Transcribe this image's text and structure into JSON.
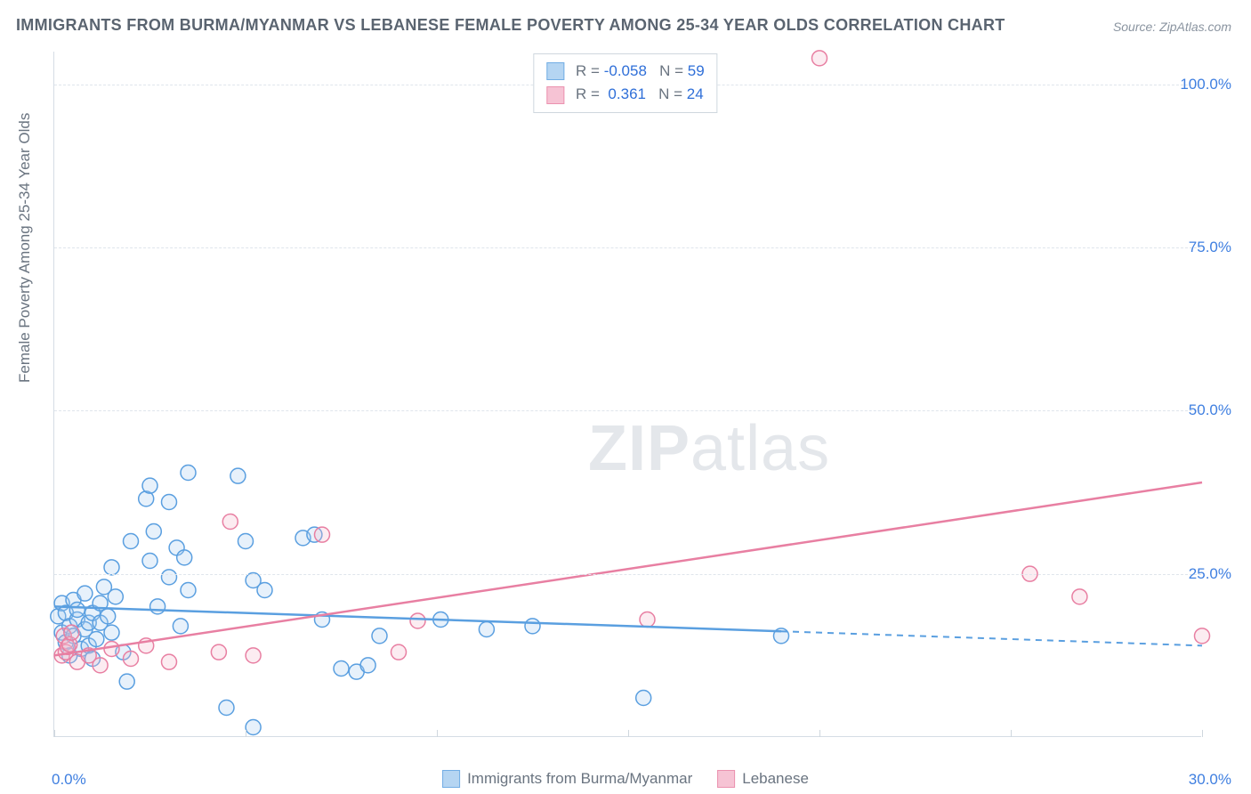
{
  "title": "IMMIGRANTS FROM BURMA/MYANMAR VS LEBANESE FEMALE POVERTY AMONG 25-34 YEAR OLDS CORRELATION CHART",
  "source": "Source: ZipAtlas.com",
  "watermark": {
    "bold": "ZIP",
    "rest": "atlas"
  },
  "chart": {
    "type": "scatter",
    "xlim": [
      0,
      30
    ],
    "ylim": [
      0,
      105
    ],
    "x_axis_label_left": "0.0%",
    "x_axis_label_right": "30.0%",
    "y_axis_label": "Female Poverty Among 25-34 Year Olds",
    "x_ticks": [
      0,
      5,
      10,
      15,
      20,
      25,
      30
    ],
    "y_ticks": [
      {
        "v": 25,
        "label": "25.0%"
      },
      {
        "v": 50,
        "label": "50.0%"
      },
      {
        "v": 75,
        "label": "75.0%"
      },
      {
        "v": 100,
        "label": "100.0%"
      }
    ],
    "y_gridlines": [
      25,
      50,
      75,
      100
    ],
    "background_color": "#ffffff",
    "grid_color": "#dfe5ec",
    "axis_color": "#d5dde5",
    "tick_color": "#cfd7de",
    "tick_label_color": "#3f7fe0",
    "axis_label_color": "#6a7480",
    "marker_radius": 8.5,
    "marker_stroke_width": 1.5,
    "marker_fill_opacity": 0.28,
    "line_width": 2.5
  },
  "series": {
    "a": {
      "name": "Immigrants from Burma/Myanmar",
      "color_stroke": "#5a9fe0",
      "color_fill": "#a9cef0",
      "R": "-0.058",
      "N": "59",
      "points": [
        [
          0.1,
          18.5
        ],
        [
          0.2,
          16.0
        ],
        [
          0.2,
          20.5
        ],
        [
          0.3,
          19.0
        ],
        [
          0.3,
          14.5
        ],
        [
          0.4,
          17.0
        ],
        [
          0.4,
          12.5
        ],
        [
          0.5,
          21.0
        ],
        [
          0.5,
          15.5
        ],
        [
          0.6,
          18.0
        ],
        [
          0.6,
          19.5
        ],
        [
          0.7,
          13.5
        ],
        [
          0.8,
          22.0
        ],
        [
          0.8,
          16.5
        ],
        [
          0.9,
          17.5
        ],
        [
          0.9,
          14.0
        ],
        [
          1.0,
          12.0
        ],
        [
          1.0,
          19.0
        ],
        [
          1.1,
          15.0
        ],
        [
          1.2,
          20.5
        ],
        [
          1.2,
          17.5
        ],
        [
          1.3,
          23.0
        ],
        [
          1.4,
          18.5
        ],
        [
          1.5,
          16.0
        ],
        [
          1.5,
          26.0
        ],
        [
          1.6,
          21.5
        ],
        [
          1.8,
          13.0
        ],
        [
          1.9,
          8.5
        ],
        [
          2.0,
          30.0
        ],
        [
          2.4,
          36.5
        ],
        [
          2.5,
          27.0
        ],
        [
          2.5,
          38.5
        ],
        [
          2.6,
          31.5
        ],
        [
          2.7,
          20.0
        ],
        [
          3.0,
          36.0
        ],
        [
          3.0,
          24.5
        ],
        [
          3.2,
          29.0
        ],
        [
          3.3,
          17.0
        ],
        [
          3.4,
          27.5
        ],
        [
          3.5,
          22.5
        ],
        [
          3.5,
          40.5
        ],
        [
          4.5,
          4.5
        ],
        [
          4.8,
          40.0
        ],
        [
          5.0,
          30.0
        ],
        [
          5.2,
          24.0
        ],
        [
          5.2,
          1.5
        ],
        [
          5.5,
          22.5
        ],
        [
          6.5,
          30.5
        ],
        [
          6.8,
          31.0
        ],
        [
          7.0,
          18.0
        ],
        [
          7.5,
          10.5
        ],
        [
          7.9,
          10.0
        ],
        [
          8.2,
          11.0
        ],
        [
          8.5,
          15.5
        ],
        [
          10.1,
          18.0
        ],
        [
          11.3,
          16.5
        ],
        [
          12.5,
          17.0
        ],
        [
          15.4,
          6.0
        ],
        [
          19.0,
          15.5
        ]
      ],
      "regression": {
        "x1": 0,
        "y1": 20.0,
        "x2": 30,
        "y2": 14.0,
        "solid_until_x": 19.0
      }
    },
    "b": {
      "name": "Lebanese",
      "color_stroke": "#e87fa2",
      "color_fill": "#f5b9cd",
      "R": "0.361",
      "N": "24",
      "points": [
        [
          0.2,
          12.5
        ],
        [
          0.25,
          15.5
        ],
        [
          0.3,
          13.0
        ],
        [
          0.35,
          13.8
        ],
        [
          0.4,
          14.2
        ],
        [
          0.45,
          16.0
        ],
        [
          0.6,
          11.5
        ],
        [
          0.9,
          12.5
        ],
        [
          1.2,
          11.0
        ],
        [
          1.5,
          13.5
        ],
        [
          2.0,
          12.0
        ],
        [
          2.4,
          14.0
        ],
        [
          3.0,
          11.5
        ],
        [
          4.3,
          13.0
        ],
        [
          4.6,
          33.0
        ],
        [
          5.2,
          12.5
        ],
        [
          7.0,
          31.0
        ],
        [
          9.0,
          13.0
        ],
        [
          9.5,
          17.8
        ],
        [
          15.5,
          18.0
        ],
        [
          20.0,
          104.0
        ],
        [
          25.5,
          25.0
        ],
        [
          26.8,
          21.5
        ],
        [
          30.0,
          15.5
        ]
      ],
      "regression": {
        "x1": 0,
        "y1": 12.5,
        "x2": 30,
        "y2": 39.0,
        "solid_until_x": 30
      }
    }
  },
  "legend_bottom": [
    {
      "label": "Immigrants from Burma/Myanmar",
      "stroke": "#5a9fe0",
      "fill": "#a9cef0"
    },
    {
      "label": "Lebanese",
      "stroke": "#e87fa2",
      "fill": "#f5b9cd"
    }
  ],
  "stats_box": [
    {
      "swatch_stroke": "#5a9fe0",
      "swatch_fill": "#a9cef0",
      "R": "-0.058",
      "N": "59"
    },
    {
      "swatch_stroke": "#e87fa2",
      "swatch_fill": "#f5b9cd",
      "R": " 0.361",
      "N": "24"
    }
  ]
}
